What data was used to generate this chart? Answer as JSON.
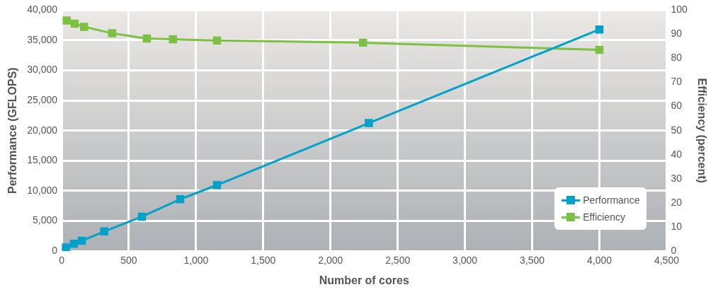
{
  "chart_data": {
    "type": "line",
    "xlabel": "Number of cores",
    "ylabel": "Performance (GFLOPS)",
    "y2label": "Efficiency (percent)",
    "xlim": [
      0,
      4500
    ],
    "xticks": [
      {
        "value": 0,
        "label": "0"
      },
      {
        "value": 500,
        "label": "500"
      },
      {
        "value": 1000,
        "label": "1,000"
      },
      {
        "value": 1500,
        "label": "1,500"
      },
      {
        "value": 2000,
        "label": "2,000"
      },
      {
        "value": 2500,
        "label": "2,500"
      },
      {
        "value": 3000,
        "label": "3,000"
      },
      {
        "value": 3500,
        "label": "3,500"
      },
      {
        "value": 4000,
        "label": "4,000"
      },
      {
        "value": 4500,
        "label": "4,500"
      }
    ],
    "ylim": [
      0,
      40000
    ],
    "yticks": [
      {
        "value": 0,
        "label": "0"
      },
      {
        "value": 5000,
        "label": "5,000"
      },
      {
        "value": 10000,
        "label": "10,000"
      },
      {
        "value": 15000,
        "label": "15,000"
      },
      {
        "value": 20000,
        "label": "20,000"
      },
      {
        "value": 25000,
        "label": "25,000"
      },
      {
        "value": 30000,
        "label": "30,000"
      },
      {
        "value": 35000,
        "label": "35,000"
      },
      {
        "value": 40000,
        "label": "40,000"
      }
    ],
    "y2lim": [
      0,
      100
    ],
    "y2ticks": [
      0,
      10,
      20,
      30,
      40,
      50,
      60,
      70,
      80,
      90,
      100
    ],
    "grid": true,
    "legend": "bottom right",
    "marker": "square",
    "line_style": "solid",
    "series": [
      {
        "name": "Performance",
        "color": "#00a2c9",
        "x": [
          32,
          91,
          150,
          317,
          597,
          882,
          1156,
          2285,
          4000
        ],
        "values": [
          600,
          1200,
          1700,
          3250,
          5700,
          8600,
          10950,
          21250,
          36800
        ]
      },
      {
        "name": "Efficiency",
        "color": "#7dc142",
        "axis": "y2",
        "x": [
          38,
          97,
          167,
          376,
          634,
          828,
          1156,
          2242,
          4000
        ],
        "values": [
          95.7,
          94.4,
          93.1,
          90.4,
          88.2,
          87.9,
          87.4,
          86.5,
          83.5
        ]
      }
    ]
  }
}
